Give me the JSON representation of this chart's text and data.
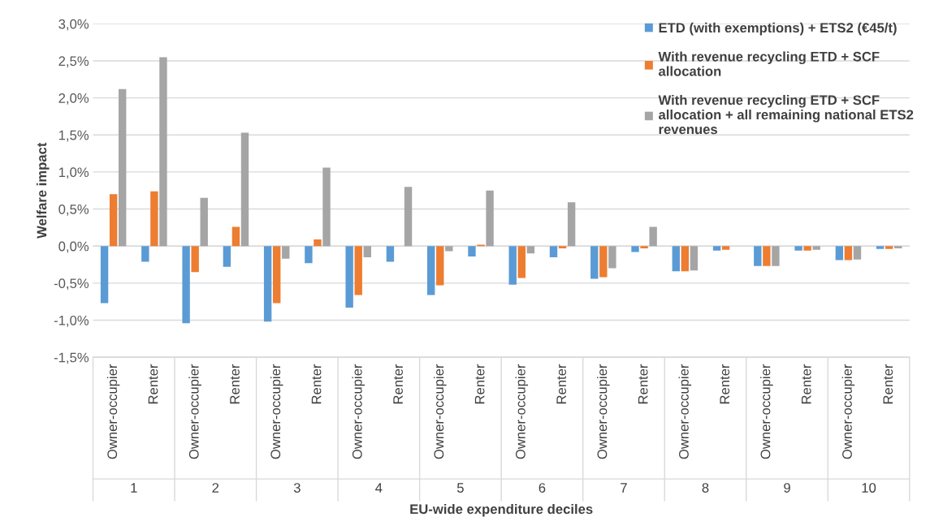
{
  "chart_data": {
    "type": "bar",
    "ylabel": "Welfare impact",
    "xlabel": "EU-wide expenditure deciles",
    "categories": [
      "Owner-occupier",
      "Renter",
      "Owner-occupier",
      "Renter",
      "Owner-occupier",
      "Renter",
      "Owner-occupier",
      "Renter",
      "Owner-occupier",
      "Renter",
      "Owner-occupier",
      "Renter",
      "Owner-occupier",
      "Renter",
      "Owner-occupier",
      "Renter",
      "Owner-occupier",
      "Renter",
      "Owner-occupier",
      "Renter"
    ],
    "annotations": [
      "1",
      "2",
      "3",
      "4",
      "5",
      "6",
      "7",
      "8",
      "9",
      "10"
    ],
    "series": [
      {
        "name": "ETD (with exemptions) + ETS2 (€45/t)",
        "color": "#5b9bd5",
        "values": [
          -0.77,
          -0.21,
          -1.04,
          -0.28,
          -1.02,
          -0.23,
          -0.83,
          -0.21,
          -0.66,
          -0.14,
          -0.52,
          -0.15,
          -0.44,
          -0.08,
          -0.34,
          -0.06,
          -0.27,
          -0.06,
          -0.19,
          -0.04
        ]
      },
      {
        "name": "With revenue recycling ETD + SCF\nallocation",
        "color": "#ed7d31",
        "values": [
          0.7,
          0.74,
          -0.35,
          0.26,
          -0.77,
          0.09,
          -0.66,
          0.0,
          -0.53,
          0.02,
          -0.43,
          -0.03,
          -0.42,
          -0.03,
          -0.34,
          -0.05,
          -0.27,
          -0.06,
          -0.19,
          -0.04
        ]
      },
      {
        "name": "With revenue recycling ETD + SCF\nallocation + all remaining national ETS2\nrevenues",
        "color": "#a5a5a5",
        "values": [
          2.12,
          2.55,
          0.65,
          1.53,
          -0.17,
          1.06,
          -0.15,
          0.8,
          -0.07,
          0.75,
          -0.1,
          0.59,
          -0.3,
          0.26,
          -0.33,
          0.0,
          -0.27,
          -0.05,
          -0.18,
          -0.03
        ]
      }
    ],
    "ylim": [
      -1.5,
      3.0
    ],
    "yticks": [
      {
        "value": -1.5,
        "label": "-1,5%"
      },
      {
        "value": -1.0,
        "label": "-1,0%"
      },
      {
        "value": -0.5,
        "label": "-0,5%"
      },
      {
        "value": 0.0,
        "label": "0,0%"
      },
      {
        "value": 0.5,
        "label": "0,5%"
      },
      {
        "value": 1.0,
        "label": "1,0%"
      },
      {
        "value": 1.5,
        "label": "1,5%"
      },
      {
        "value": 2.0,
        "label": "2,0%"
      },
      {
        "value": 2.5,
        "label": "2,5%"
      },
      {
        "value": 3.0,
        "label": "3,0%"
      }
    ],
    "grid": "y",
    "legend": "top right"
  }
}
